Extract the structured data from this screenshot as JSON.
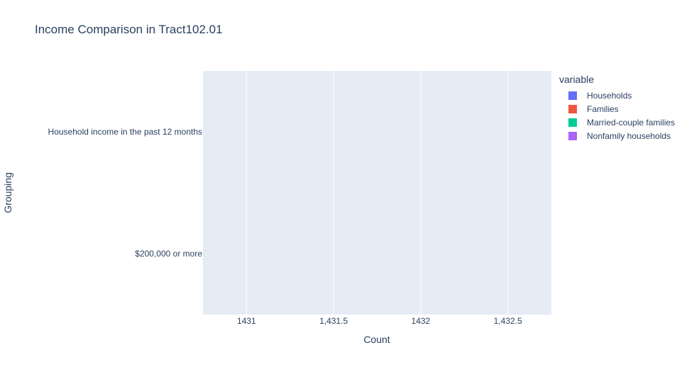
{
  "chart_data": {
    "type": "bar",
    "orientation": "horizontal",
    "title": "Income Comparison in Tract102.01",
    "xlabel": "Count",
    "ylabel": "Grouping",
    "categories": [
      "Household income in the past 12 months",
      "$200,000 or more"
    ],
    "xlim": [
      1430.75,
      1432.75
    ],
    "x_ticks": [
      1431,
      1431.5,
      1432,
      1432.5
    ],
    "x_tick_labels": [
      "1431",
      "1,431.5",
      "1432",
      "1,432.5"
    ],
    "grid": true,
    "legend_title": "variable",
    "legend_position": "right",
    "series": [
      {
        "name": "Households",
        "color": "#636efa",
        "values": [
          null,
          null
        ]
      },
      {
        "name": "Families",
        "color": "#ef553b",
        "values": [
          null,
          null
        ]
      },
      {
        "name": "Married-couple families",
        "color": "#00cc96",
        "values": [
          null,
          null
        ]
      },
      {
        "name": "Nonfamily households",
        "color": "#ab63fa",
        "values": [
          null,
          null
        ]
      }
    ]
  },
  "colors": {
    "plot_background": "#e5ecf6",
    "grid": "#ffffff",
    "text": "#2a3f5f"
  }
}
